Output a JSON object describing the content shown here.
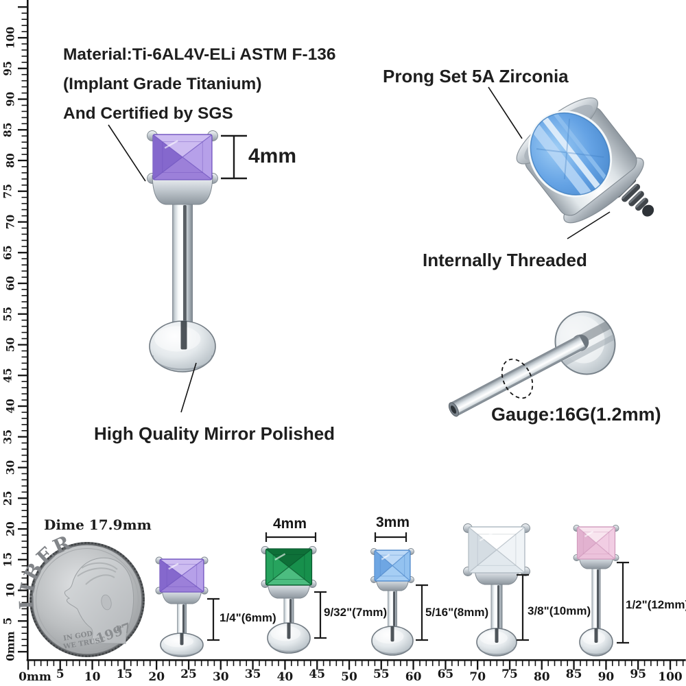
{
  "title_block": {
    "line1": "Material:Ti-6AL4V-ELi ASTM F-136",
    "line2": "(Implant Grade Titanium)",
    "line3": "And Certified by SGS"
  },
  "callouts": {
    "prong_set": "Prong Set 5A Zirconia",
    "internally_threaded": "Internally Threaded",
    "mirror_polished": "High Quality Mirror Polished",
    "gauge": "Gauge:16G(1.2mm)",
    "gem_height": "4mm",
    "dime": "Dime 17.9mm"
  },
  "coin": {
    "liberty": "LIBERTY",
    "motto1": "IN GOD",
    "motto2": "WE TRUST",
    "mint": "P",
    "year": "1997"
  },
  "ruler": {
    "unit": "mm",
    "h_labels": [
      "0mm",
      "5",
      "10",
      "15",
      "20",
      "25",
      "30",
      "35",
      "40",
      "45",
      "50",
      "55",
      "60",
      "65",
      "70",
      "75",
      "80",
      "85",
      "90",
      "95",
      "100"
    ],
    "v_labels": [
      "0mm",
      "5",
      "10",
      "15",
      "20",
      "25",
      "30",
      "35",
      "40",
      "45",
      "50",
      "55",
      "60",
      "65",
      "70",
      "75",
      "80",
      "85",
      "90",
      "95",
      "100"
    ]
  },
  "studs": [
    {
      "gem": "purple",
      "gem_hex": "#a78cdf",
      "width_label": "",
      "length_label": "1/4\"(6mm)"
    },
    {
      "gem": "green",
      "gem_hex": "#1a9552",
      "width_label": "4mm",
      "length_label": "9/32\"(7mm)"
    },
    {
      "gem": "blue",
      "gem_hex": "#85bbee",
      "width_label": "3mm",
      "length_label": "5/16\"(8mm)"
    },
    {
      "gem": "clear",
      "gem_hex": "#e8edf1",
      "width_label": "",
      "length_label": "3/8\"(10mm)"
    },
    {
      "gem": "pink",
      "gem_hex": "#eec8de",
      "width_label": "",
      "length_label": "1/2\"(12mm)"
    }
  ],
  "colors": {
    "steel_light": "#f6f9fa",
    "steel_mid": "#c6cdd3",
    "steel_dark": "#79828a",
    "screw": "#42474c",
    "gem_blue_large": "#64a2e4",
    "coin_gray": "#bcbfc1",
    "text": "#1e1e1e"
  }
}
